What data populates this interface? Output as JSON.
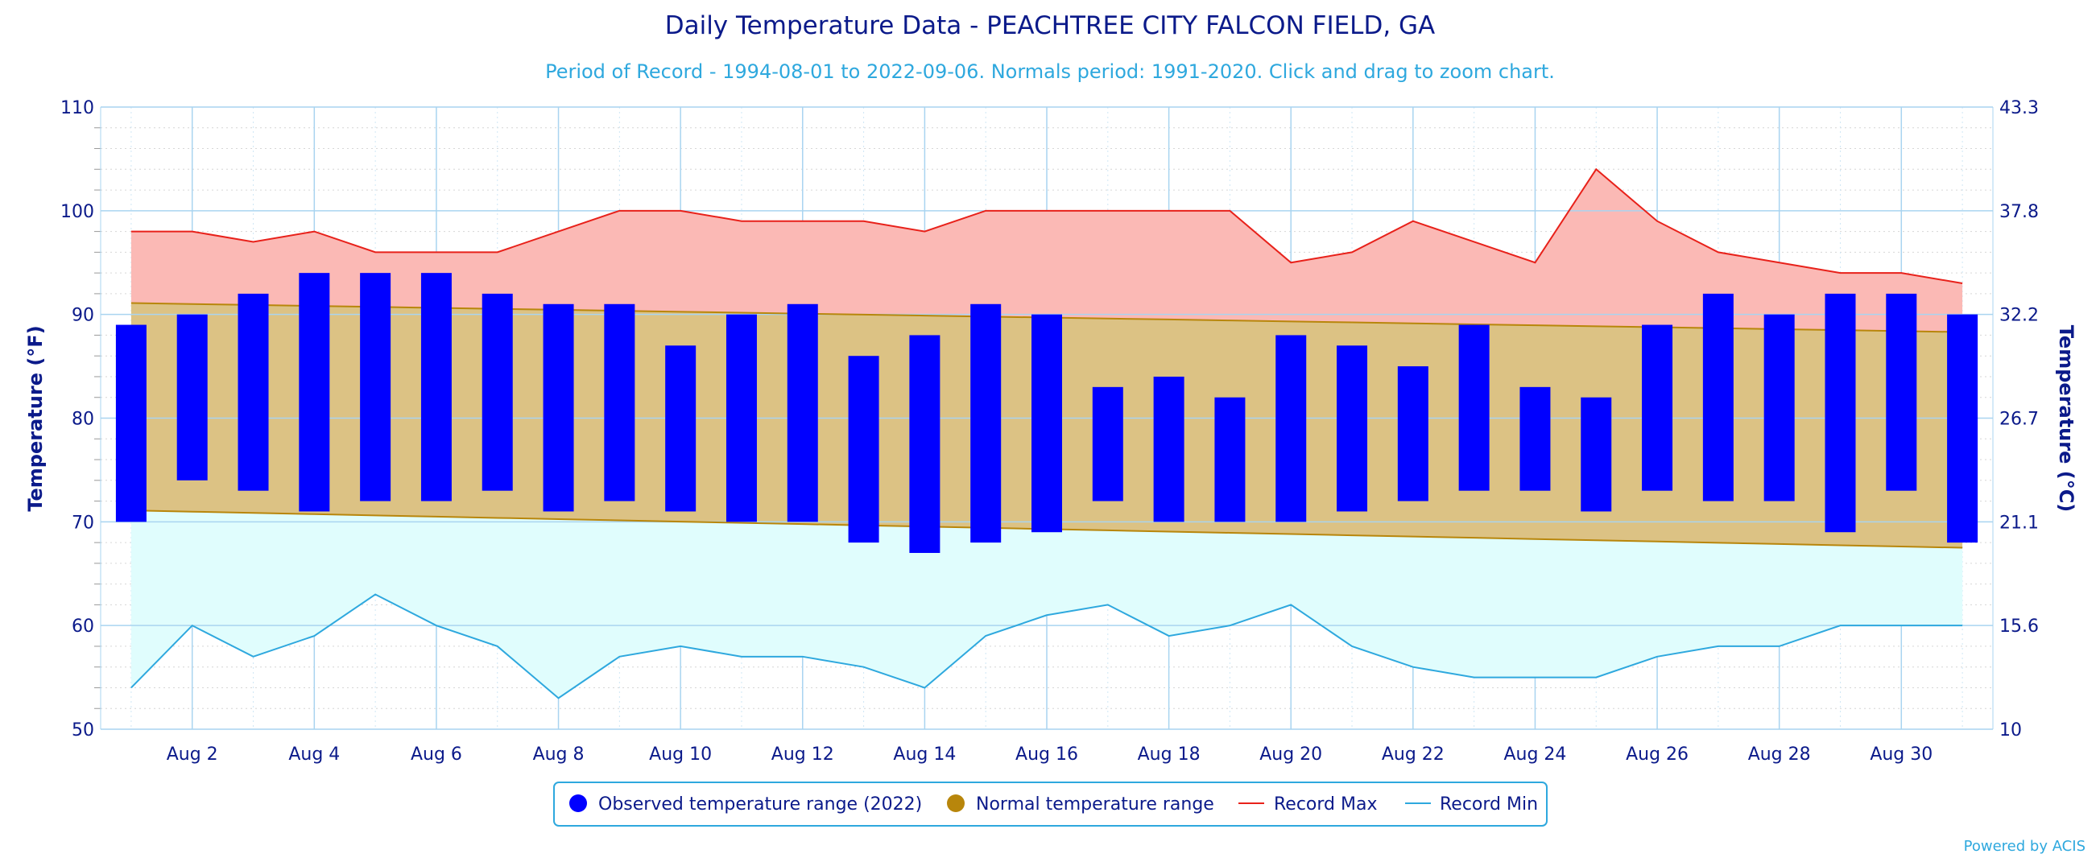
{
  "chart_data": {
    "type": "bar",
    "title": "Daily Temperature Data - PEACHTREE CITY FALCON FIELD, GA",
    "subtitle": "Period of Record - 1994-08-01 to 2022-09-06. Normals period: 1991-2020. Click and drag to zoom chart.",
    "ylabel_left": "Temperature (°F)",
    "ylabel_right": "Temperature (°C)",
    "ylim": [
      50,
      110
    ],
    "yticks": [
      50,
      60,
      70,
      80,
      90,
      100,
      110
    ],
    "yticks_right": [
      "10",
      "15.6",
      "21.1",
      "26.7",
      "32.2",
      "37.8",
      "43.3"
    ],
    "xlim": [
      0.5,
      31.5
    ],
    "x_tick_days": [
      2,
      4,
      6,
      8,
      10,
      12,
      14,
      16,
      18,
      20,
      22,
      24,
      26,
      28,
      30
    ],
    "x_tick_labels": [
      "Aug 2",
      "Aug 4",
      "Aug 6",
      "Aug 8",
      "Aug 10",
      "Aug 12",
      "Aug 14",
      "Aug 16",
      "Aug 18",
      "Aug 20",
      "Aug 22",
      "Aug 24",
      "Aug 26",
      "Aug 28",
      "Aug 30"
    ],
    "days": [
      1,
      2,
      3,
      4,
      5,
      6,
      7,
      8,
      9,
      10,
      11,
      12,
      13,
      14,
      15,
      16,
      17,
      18,
      19,
      20,
      21,
      22,
      23,
      24,
      25,
      26,
      27,
      28,
      29,
      30,
      31
    ],
    "grid": true,
    "legend_position": "bottom",
    "series": [
      {
        "name": "Observed temperature range (2022)",
        "type": "columnrange",
        "color": "#0000ff",
        "low": [
          70,
          74,
          73,
          71,
          72,
          72,
          73,
          71,
          72,
          71,
          70,
          70,
          68,
          67,
          68,
          69,
          72,
          70,
          70,
          70,
          71,
          72,
          73,
          73,
          71,
          73,
          72,
          72,
          69,
          73,
          68
        ],
        "high": [
          89,
          90,
          92,
          94,
          94,
          94,
          92,
          91,
          91,
          87,
          90,
          91,
          86,
          88,
          91,
          90,
          83,
          84,
          82,
          88,
          87,
          85,
          89,
          83,
          82,
          89,
          92,
          90,
          92,
          92,
          90
        ]
      },
      {
        "name": "Normal temperature range",
        "type": "arearange",
        "color": "#b8860b",
        "fill": "#dcc284",
        "low_start": 71.1,
        "low_end": 67.5,
        "high_start": 91.1,
        "high_end": 88.3
      },
      {
        "name": "Record Max",
        "type": "line",
        "color": "#e8211a",
        "fill": "#fbb9b5",
        "values": [
          98,
          98,
          97,
          98,
          96,
          96,
          96,
          98,
          100,
          100,
          99,
          99,
          99,
          98,
          100,
          100,
          100,
          100,
          100,
          95,
          96,
          99,
          97,
          95,
          104,
          99,
          96,
          95,
          94,
          94,
          93
        ]
      },
      {
        "name": "Record Min",
        "type": "line",
        "color": "#2ea8de",
        "fill": "#e0fdfd",
        "values": [
          54,
          60,
          57,
          59,
          63,
          60,
          58,
          53,
          57,
          58,
          57,
          57,
          56,
          54,
          59,
          61,
          62,
          59,
          60,
          62,
          58,
          56,
          55,
          55,
          55,
          57,
          58,
          58,
          60,
          60,
          60
        ]
      }
    ]
  },
  "credit": "Powered by ACIS"
}
